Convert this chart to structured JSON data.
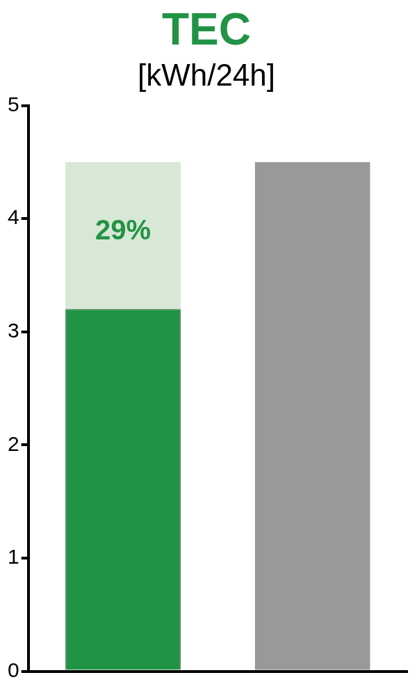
{
  "chart_data": {
    "type": "bar",
    "title": "TEC",
    "subtitle": "[kWh/24h]",
    "categories": [
      null,
      null
    ],
    "stacked": true,
    "series": [
      {
        "color": "#229345",
        "values": [
          3.2,
          null
        ]
      },
      {
        "color": "#d8e8d6",
        "values": [
          1.3,
          null
        ]
      },
      {
        "color": "#999999",
        "values": [
          null,
          4.5
        ]
      }
    ],
    "annotations": [
      "29%"
    ],
    "ylim": [
      0,
      5
    ],
    "yticks": [
      0,
      1,
      2,
      3,
      4,
      5
    ],
    "grid": false,
    "legend": false
  }
}
